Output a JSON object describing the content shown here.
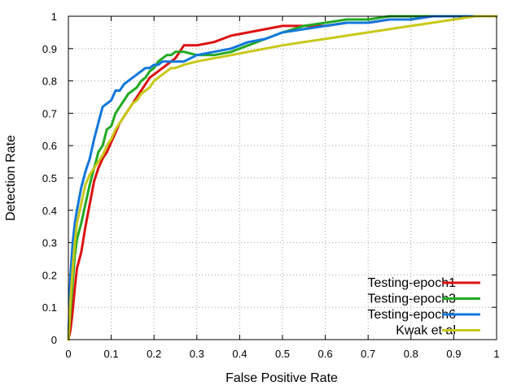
{
  "chart_data": {
    "type": "line",
    "xlabel": "False Positive Rate",
    "ylabel": "Detection Rate",
    "xlim": [
      0,
      1
    ],
    "ylim": [
      0,
      1
    ],
    "xticks": [
      "0",
      "0.1",
      "0.2",
      "0.3",
      "0.4",
      "0.5",
      "0.6",
      "0.7",
      "0.8",
      "0.9",
      "1"
    ],
    "yticks": [
      "0",
      "0.1",
      "0.2",
      "0.3",
      "0.4",
      "0.5",
      "0.6",
      "0.7",
      "0.8",
      "0.9",
      "1"
    ],
    "grid": true,
    "legend_position": "bottom-right",
    "series": [
      {
        "name": "Testing-epoch1",
        "color": "#dd1111",
        "x": [
          0,
          0.005,
          0.01,
          0.015,
          0.02,
          0.03,
          0.04,
          0.05,
          0.06,
          0.07,
          0.08,
          0.09,
          0.1,
          0.11,
          0.12,
          0.13,
          0.14,
          0.15,
          0.16,
          0.17,
          0.18,
          0.19,
          0.2,
          0.21,
          0.22,
          0.23,
          0.24,
          0.25,
          0.27,
          0.3,
          0.34,
          0.38,
          0.42,
          0.46,
          0.5,
          0.55,
          0.6,
          0.65,
          0.7,
          0.75,
          0.8,
          0.85,
          0.9,
          0.95,
          1.0
        ],
        "y": [
          0,
          0.03,
          0.09,
          0.16,
          0.22,
          0.27,
          0.35,
          0.42,
          0.49,
          0.53,
          0.56,
          0.58,
          0.61,
          0.64,
          0.67,
          0.69,
          0.71,
          0.73,
          0.75,
          0.77,
          0.79,
          0.81,
          0.82,
          0.83,
          0.84,
          0.85,
          0.86,
          0.87,
          0.91,
          0.91,
          0.92,
          0.94,
          0.95,
          0.96,
          0.97,
          0.97,
          0.97,
          0.98,
          0.98,
          0.99,
          0.99,
          1.0,
          1.0,
          1.0,
          1.0
        ]
      },
      {
        "name": "Testing-epoch3",
        "color": "#22aa22",
        "x": [
          0,
          0.005,
          0.01,
          0.015,
          0.02,
          0.03,
          0.04,
          0.05,
          0.06,
          0.07,
          0.08,
          0.09,
          0.1,
          0.11,
          0.12,
          0.13,
          0.14,
          0.15,
          0.16,
          0.17,
          0.18,
          0.19,
          0.2,
          0.21,
          0.22,
          0.23,
          0.24,
          0.25,
          0.27,
          0.3,
          0.34,
          0.38,
          0.42,
          0.46,
          0.5,
          0.55,
          0.6,
          0.65,
          0.7,
          0.75,
          0.8,
          0.85,
          0.9,
          0.95,
          1.0
        ],
        "y": [
          0,
          0.09,
          0.18,
          0.26,
          0.31,
          0.36,
          0.42,
          0.48,
          0.53,
          0.58,
          0.6,
          0.65,
          0.66,
          0.7,
          0.72,
          0.74,
          0.76,
          0.77,
          0.78,
          0.8,
          0.81,
          0.83,
          0.84,
          0.86,
          0.87,
          0.88,
          0.88,
          0.89,
          0.89,
          0.88,
          0.88,
          0.89,
          0.91,
          0.93,
          0.95,
          0.97,
          0.98,
          0.99,
          0.99,
          1.0,
          1.0,
          1.0,
          1.0,
          1.0,
          1.0
        ]
      },
      {
        "name": "Testing-epoch6",
        "color": "#1177dd",
        "x": [
          0,
          0.005,
          0.01,
          0.015,
          0.02,
          0.03,
          0.04,
          0.05,
          0.06,
          0.07,
          0.08,
          0.09,
          0.1,
          0.11,
          0.12,
          0.13,
          0.14,
          0.15,
          0.16,
          0.17,
          0.18,
          0.19,
          0.2,
          0.21,
          0.22,
          0.23,
          0.24,
          0.25,
          0.27,
          0.3,
          0.34,
          0.38,
          0.42,
          0.46,
          0.5,
          0.55,
          0.6,
          0.65,
          0.7,
          0.75,
          0.8,
          0.85,
          0.9,
          0.95,
          1.0
        ],
        "y": [
          0,
          0.2,
          0.3,
          0.36,
          0.4,
          0.47,
          0.52,
          0.56,
          0.62,
          0.67,
          0.72,
          0.73,
          0.74,
          0.77,
          0.77,
          0.79,
          0.8,
          0.81,
          0.82,
          0.83,
          0.84,
          0.84,
          0.85,
          0.85,
          0.86,
          0.86,
          0.86,
          0.86,
          0.86,
          0.88,
          0.89,
          0.9,
          0.92,
          0.93,
          0.95,
          0.96,
          0.97,
          0.98,
          0.98,
          0.99,
          0.99,
          1.0,
          1.0,
          1.0,
          1.0
        ]
      },
      {
        "name": "Kwak et al",
        "color": "#c8c818",
        "x": [
          0,
          0.005,
          0.01,
          0.015,
          0.02,
          0.03,
          0.04,
          0.05,
          0.06,
          0.07,
          0.08,
          0.09,
          0.1,
          0.11,
          0.12,
          0.13,
          0.14,
          0.15,
          0.16,
          0.17,
          0.18,
          0.19,
          0.2,
          0.21,
          0.22,
          0.23,
          0.24,
          0.25,
          0.27,
          0.3,
          0.34,
          0.38,
          0.42,
          0.46,
          0.5,
          0.55,
          0.6,
          0.65,
          0.7,
          0.75,
          0.8,
          0.85,
          0.9,
          0.95,
          1.0
        ],
        "y": [
          0,
          0.12,
          0.22,
          0.3,
          0.36,
          0.42,
          0.48,
          0.51,
          0.53,
          0.55,
          0.57,
          0.6,
          0.62,
          0.65,
          0.67,
          0.69,
          0.71,
          0.73,
          0.74,
          0.76,
          0.77,
          0.78,
          0.8,
          0.81,
          0.82,
          0.83,
          0.84,
          0.84,
          0.85,
          0.86,
          0.87,
          0.88,
          0.89,
          0.9,
          0.91,
          0.92,
          0.93,
          0.94,
          0.95,
          0.96,
          0.97,
          0.98,
          0.99,
          1.0,
          1.0
        ]
      }
    ]
  }
}
